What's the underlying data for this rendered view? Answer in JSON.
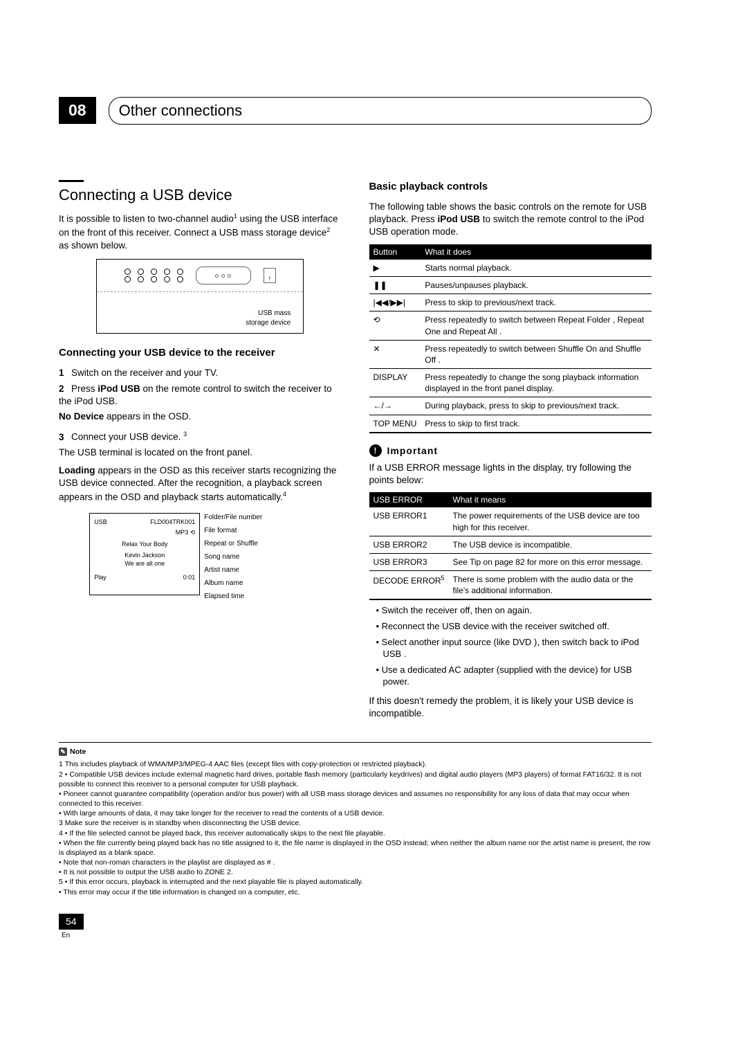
{
  "chapter": {
    "number": "08",
    "title": "Other connections"
  },
  "left": {
    "title": "Connecting a USB device",
    "intro_a": "It is possible to listen to two-channel audio",
    "intro_b": " using the USB interface on the front of this receiver. Connect a USB mass storage device",
    "intro_c": " as shown below.",
    "diagram": {
      "label1": "USB mass",
      "label2": "storage device"
    },
    "sub_title": "Connecting your USB device to the receiver",
    "step1": "Switch on the receiver and your TV.",
    "step2a": "Press ",
    "step2b": "iPod USB",
    "step2c": " on the remote control to switch the receiver to the iPod USB.",
    "step2d": "No Device",
    "step2e": " appears in the OSD.",
    "step3a": "Connect your USB device. ",
    "step3b": "The USB terminal is located on the front panel.",
    "after_steps_a": "Loading",
    "after_steps_b": " appears in the OSD as this receiver starts recognizing the USB device connected. After the recognition, a playback screen appears in the OSD and playback starts automatically.",
    "osd": {
      "usb": "USB",
      "fld": "FLD004TRK001",
      "mp3": "MP3",
      "song": "Relax Your Body",
      "artist": "Kevin Jackson",
      "album": "We are all one",
      "status": "Play",
      "time": "0:01",
      "l1": "Folder/File number",
      "l2": "File format",
      "l3": "Repeat or Shuffle",
      "l4": "Song name",
      "l5": "Artist name",
      "l6": "Album name",
      "l7": "Elapsed time"
    }
  },
  "right": {
    "title": "Basic playback controls",
    "intro_a": "The following table shows the basic controls on the remote for USB playback. Press ",
    "intro_b": "iPod USB",
    "intro_c": " to switch the remote control to the iPod USB operation mode.",
    "table1": {
      "h1": "Button",
      "h2": "What it does",
      "rows": [
        {
          "b": "▶",
          "d": "Starts normal playback."
        },
        {
          "b": "❚❚",
          "d": "Pauses/unpauses playback."
        },
        {
          "b": "|◀◀/▶▶|",
          "d": "Press to skip to previous/next track."
        },
        {
          "b": "⟲",
          "d": "Press repeatedly to switch between Repeat Folder , Repeat One  and Repeat All ."
        },
        {
          "b": "✕",
          "d": "Press repeatedly to switch between Shuffle On and Shuffle Off ."
        },
        {
          "b": "DISPLAY",
          "d": "Press repeatedly to change the song playback information displayed in the front panel display."
        },
        {
          "b": "←/→",
          "d": "During playback, press to skip to previous/next track."
        },
        {
          "b": "TOP MENU",
          "d": "Press to skip to first track."
        }
      ]
    },
    "important": "Important",
    "important_p": "If a USB ERROR message lights in the display, try following the points below:",
    "table2": {
      "h1": "USB ERROR",
      "h2": "What it means",
      "rows": [
        {
          "b": "USB ERROR1",
          "d": "The power requirements of the USB device are too high for this receiver."
        },
        {
          "b": "USB ERROR2",
          "d": "The USB device is incompatible."
        },
        {
          "b": "USB ERROR3",
          "d": "See Tip                    on page 82 for more on this error message."
        },
        {
          "b": "DECODE ERROR",
          "d": "There is some problem with the audio data or the file's additional information.",
          "sup": "5"
        }
      ]
    },
    "tips": [
      "Switch the receiver off, then on again.",
      "Reconnect the USB device with the receiver switched off.",
      "Select another input source (like DVD ), then switch back to iPod USB .",
      "Use a dedicated AC adapter (supplied with the device) for USB power."
    ],
    "closing": "If this doesn't remedy the problem, it is likely your USB device is incompatible."
  },
  "notes": {
    "label": "Note",
    "items": [
      "1  This includes playback of WMA/MP3/MPEG-4 AAC files (except files with copy-protection or restricted playback).",
      "2 •  Compatible USB devices include external magnetic hard drives, portable flash memory (particularly keydrives) and digital audio players (MP3 players) of format FAT16/32. It is not possible to connect this receiver to a personal computer for USB playback.",
      "   •  Pioneer cannot guarantee compatibility (operation and/or bus power) with all USB mass storage devices and assumes no responsibility for any loss of data that may occur when connected to this receiver.",
      "   •  With large amounts of data, it may take longer for the receiver to read the contents of a USB device.",
      "3 Make sure the receiver is in standby when disconnecting the USB device.",
      "4 •  If the file selected cannot be played back, this receiver automatically skips to the next file playable.",
      "   •  When the file currently being played back has no title assigned to it, the file name is displayed in the OSD instead; when neither the album name nor the artist name is present, the row is displayed as a blank space.",
      "   •  Note that non-roman characters in the playlist are displayed as # .",
      "   •  It is not possible to output the USB audio to ZONE 2.",
      "5 •  If this error occurs, playback is interrupted and the next playable file is played automatically.",
      "   •  This error may occur if the title information is changed on a computer, etc."
    ]
  },
  "footer": {
    "page": "54",
    "lang": "En"
  }
}
